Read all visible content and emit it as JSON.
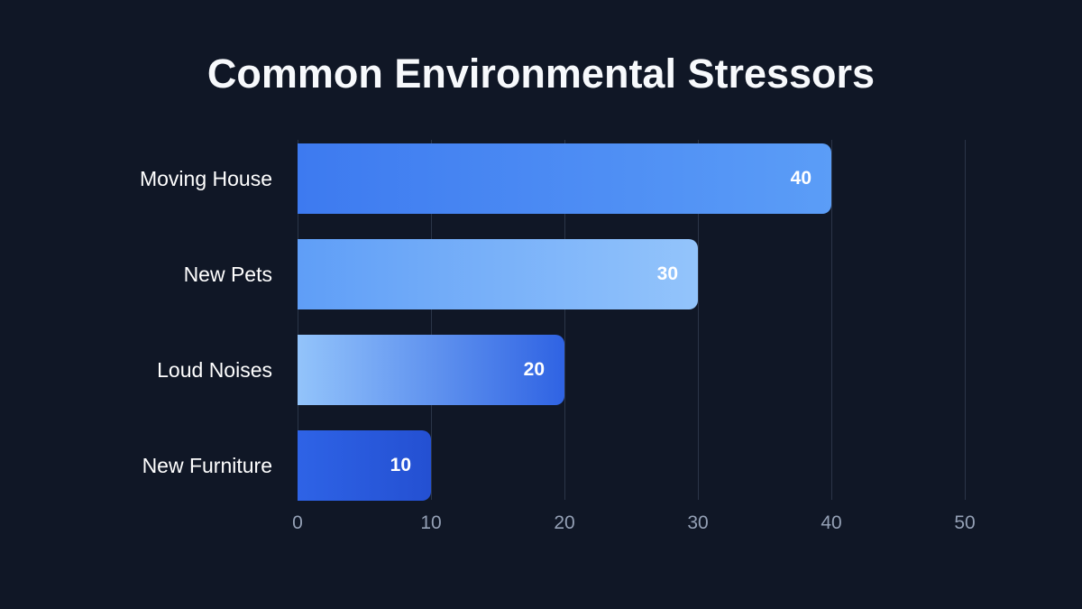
{
  "title": "Common Environmental Stressors",
  "colors": {
    "background": "#101726",
    "title_text": "#f7f9fc",
    "category_label_text": "#ffffff",
    "value_label_text": "#ffffff",
    "tick_label_text": "#94a0b5",
    "gridline": "#2b3548"
  },
  "chart_data": {
    "type": "bar",
    "orientation": "horizontal",
    "title": "Common Environmental Stressors",
    "categories": [
      "Moving House",
      "New Pets",
      "Loud Noises",
      "New Furniture"
    ],
    "values": [
      40,
      30,
      20,
      10
    ],
    "xlabel": "",
    "ylabel": "",
    "xlim": [
      0,
      50
    ],
    "xticks": [
      0,
      10,
      20,
      30,
      40,
      50
    ],
    "grid": "vertical",
    "legend": false,
    "value_labels_inside_bar_end": true,
    "bar_gradients": [
      [
        "#3d7af0",
        "#5b9df7"
      ],
      [
        "#5f9ef7",
        "#93c4fb"
      ],
      [
        "#93c4fb",
        "#2f63e3"
      ],
      [
        "#2e63e6",
        "#2450d2"
      ]
    ]
  }
}
